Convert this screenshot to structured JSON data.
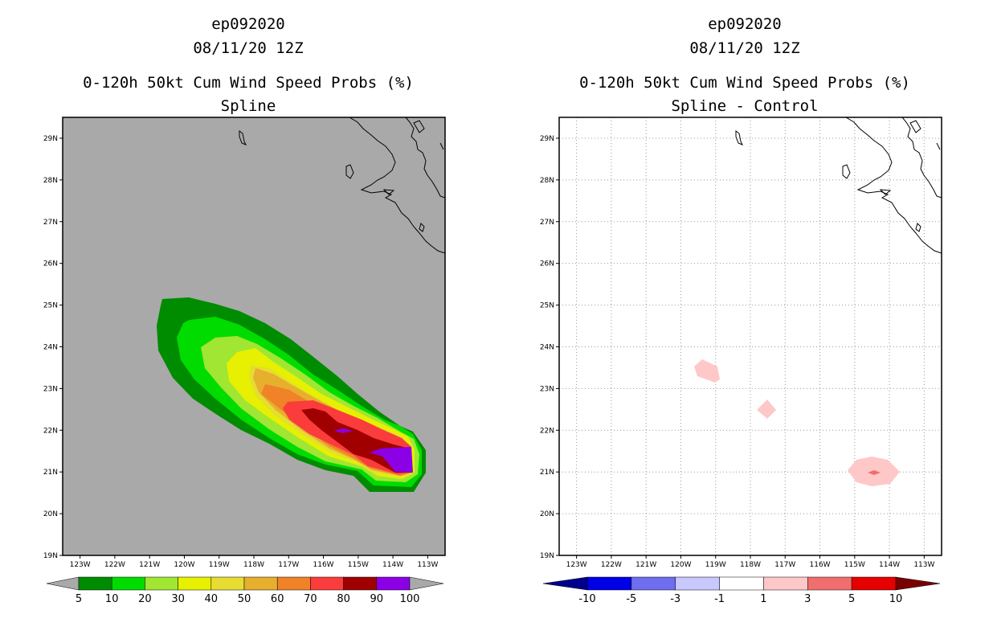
{
  "chart_data": [
    {
      "type": "filled-contour-map",
      "storm_id": "ep092020",
      "datetime": "08/11/20 12Z",
      "title": "0-120h 50kt Cum Wind Speed Probs (%)",
      "subtitle": "Spline",
      "x_ticks": [
        "123W",
        "122W",
        "121W",
        "120W",
        "119W",
        "118W",
        "117W",
        "116W",
        "115W",
        "114W",
        "113W"
      ],
      "y_ticks": [
        "29N",
        "28N",
        "27N",
        "26N",
        "25N",
        "24N",
        "23N",
        "22N",
        "21N",
        "20N",
        "19N"
      ],
      "xlim": [
        -123.5,
        -112.5
      ],
      "ylim": [
        19,
        29.5
      ],
      "grid": false,
      "background": "#a9a9a9",
      "colorbar": {
        "levels": [
          "5",
          "10",
          "20",
          "30",
          "40",
          "50",
          "60",
          "70",
          "80",
          "90",
          "100"
        ],
        "colors": [
          "#008c00",
          "#00dc00",
          "#a0e632",
          "#e6f000",
          "#e6dc32",
          "#e6af2d",
          "#f08228",
          "#fa3c3c",
          "#a00000",
          "#8c00e6"
        ]
      }
    },
    {
      "type": "filled-contour-map",
      "storm_id": "ep092020",
      "datetime": "08/11/20 12Z",
      "title": "0-120h 50kt Cum Wind Speed Probs (%)",
      "subtitle": "Spline - Control",
      "x_ticks": [
        "123W",
        "122W",
        "121W",
        "120W",
        "119W",
        "118W",
        "117W",
        "116W",
        "115W",
        "114W",
        "113W"
      ],
      "y_ticks": [
        "29N",
        "28N",
        "27N",
        "26N",
        "25N",
        "24N",
        "23N",
        "22N",
        "21N",
        "20N",
        "19N"
      ],
      "xlim": [
        -123.5,
        -112.5
      ],
      "ylim": [
        19,
        29.5
      ],
      "grid": true,
      "background": "#ffffff",
      "colorbar": {
        "levels": [
          "-10",
          "-5",
          "-3",
          "-1",
          "1",
          "3",
          "5",
          "10"
        ],
        "colors": [
          "#00008c",
          "#0000e6",
          "#6e6eee",
          "#c8c8ff",
          "#ffffff",
          "#ffc8c8",
          "#f06e6e",
          "#e60000",
          "#780000"
        ]
      }
    }
  ]
}
